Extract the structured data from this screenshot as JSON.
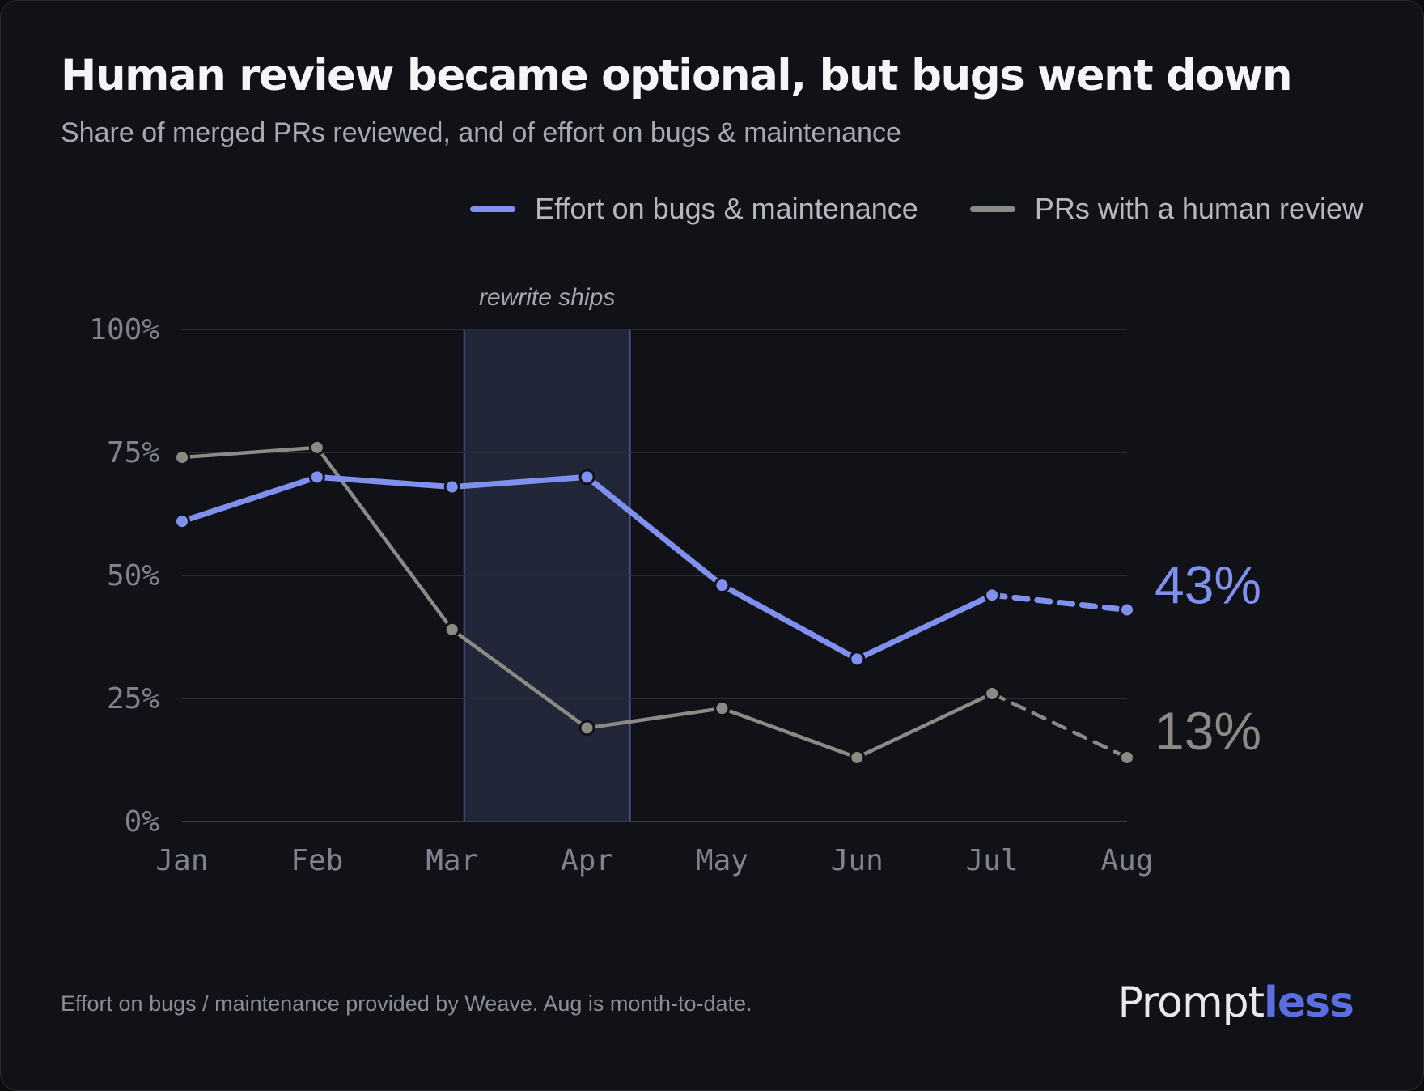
{
  "title": "Human review became optional, but bugs went down",
  "subtitle": "Share of merged PRs reviewed, and of effort on bugs & maintenance",
  "footnote": "Effort on bugs / maintenance provided by Weave. Aug is month-to-date.",
  "brand": {
    "part1": "Prompt",
    "part2": "less"
  },
  "colors": {
    "effort": "#8090ee",
    "reviewed": "#8c8a84",
    "grid": "#2a2c33",
    "axis_text": "#7f828c",
    "band_fill": "#222639",
    "band_stroke": "#4a5490"
  },
  "chart_data": {
    "type": "line",
    "x": [
      "Jan",
      "Feb",
      "Mar",
      "Apr",
      "May",
      "Jun",
      "Jul",
      "Aug"
    ],
    "yticks": [
      "0%",
      "25%",
      "50%",
      "75%",
      "100%"
    ],
    "ylim": [
      0,
      100
    ],
    "grid": true,
    "legend_position": "top-right",
    "series": [
      {
        "name": "Effort on bugs & maintenance",
        "key": "effort",
        "values": [
          61,
          70,
          68,
          70,
          48,
          33,
          46,
          43
        ],
        "end_label": "43%",
        "last_segment_dashed": true
      },
      {
        "name": "PRs with a human review",
        "key": "reviewed",
        "values": [
          74,
          76,
          39,
          19,
          23,
          13,
          26,
          13
        ],
        "end_label": "13%",
        "last_segment_dashed": true
      }
    ],
    "annotation": {
      "label": "rewrite ships",
      "from": "Mar",
      "to": "Apr"
    }
  }
}
